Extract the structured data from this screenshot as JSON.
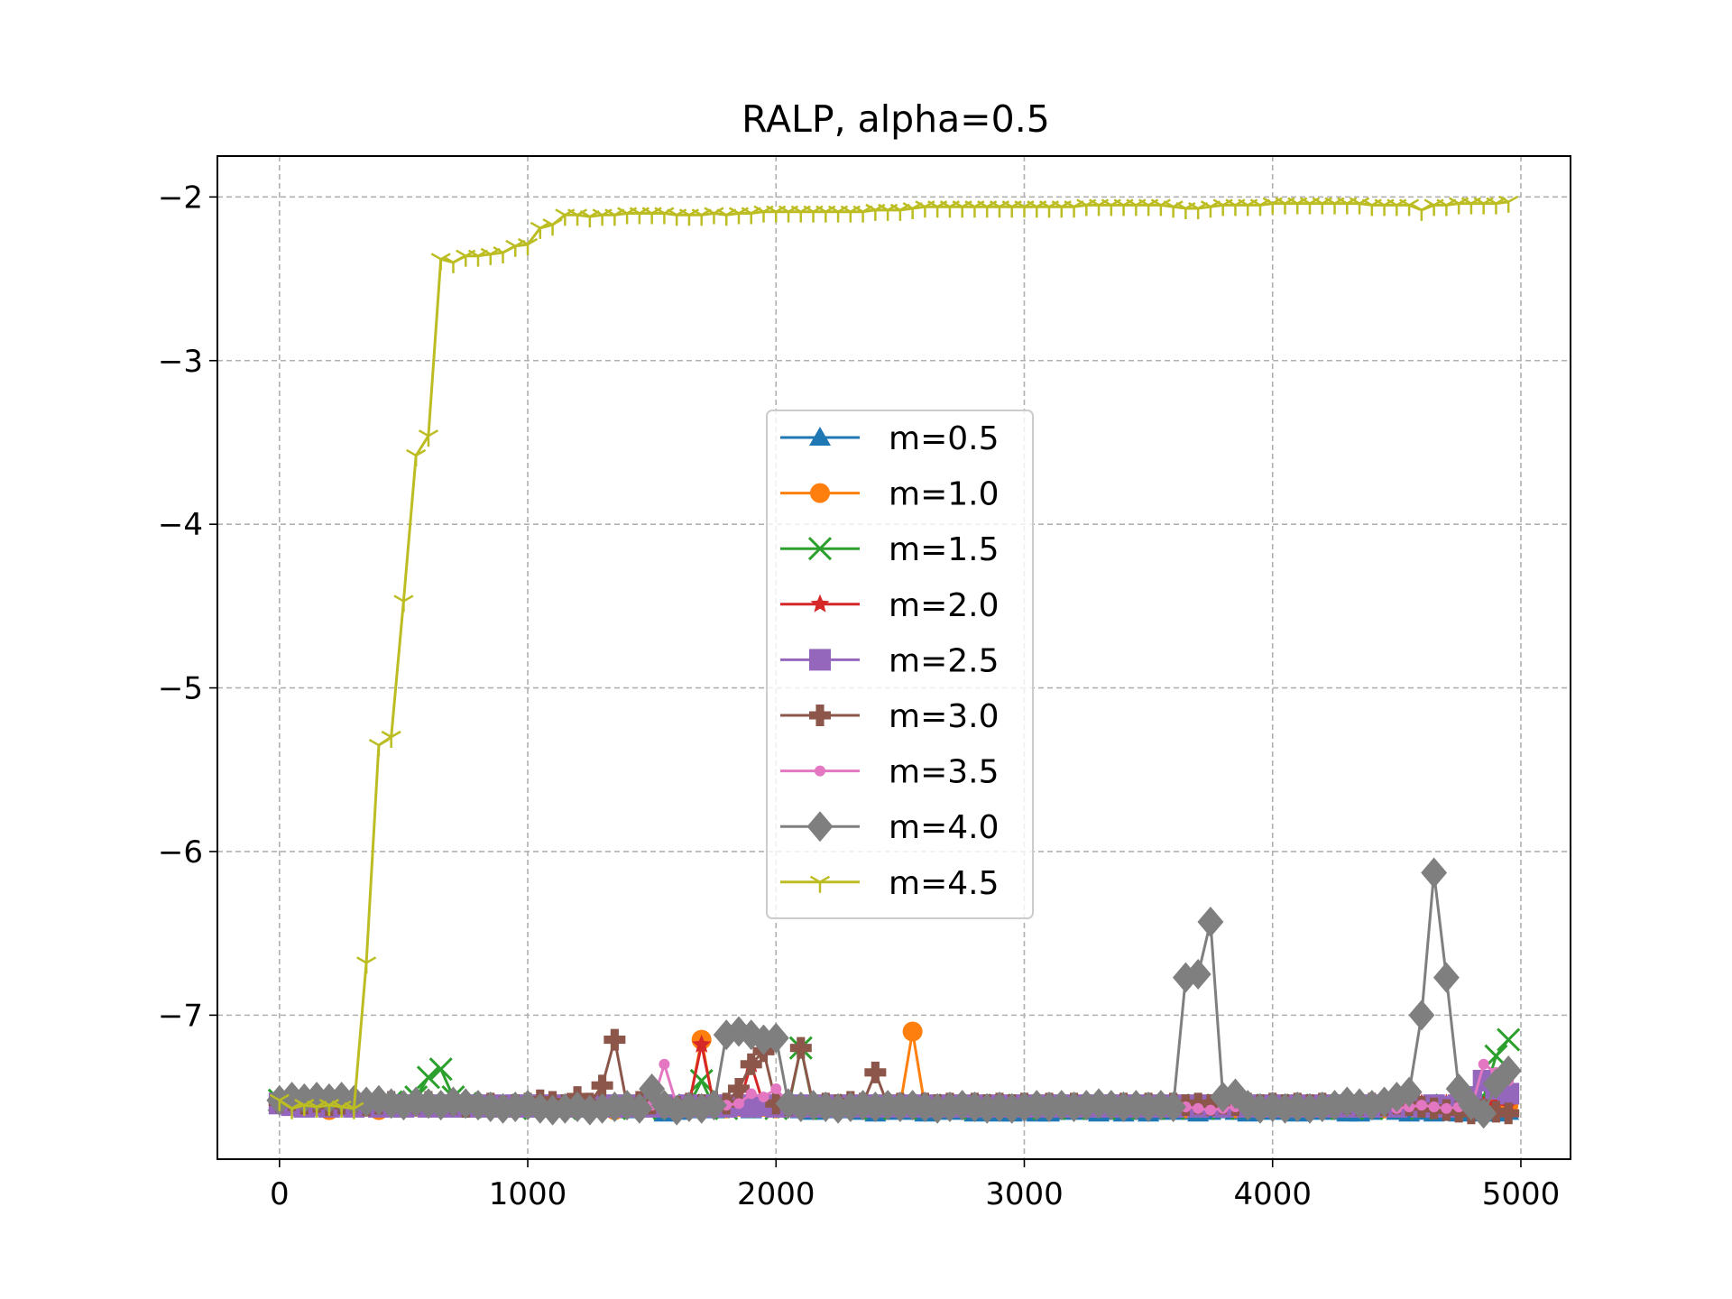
{
  "chart_data": {
    "type": "line",
    "title": "RALP, alpha=0.5",
    "xlabel": "",
    "ylabel": "",
    "xlim": [
      -250,
      5200
    ],
    "ylim": [
      -7.88,
      -1.75
    ],
    "xticks": [
      0,
      1000,
      2000,
      3000,
      4000,
      5000
    ],
    "yticks": [
      -7,
      -6,
      -5,
      -4,
      -3,
      -2
    ],
    "xtick_labels": [
      "0",
      "1000",
      "2000",
      "3000",
      "4000",
      "5000"
    ],
    "ytick_labels": [
      "−7",
      "−6",
      "−5",
      "−4",
      "−3",
      "−2"
    ],
    "grid": true,
    "legend_position": "center",
    "x": [
      0,
      50,
      100,
      150,
      200,
      250,
      300,
      350,
      400,
      450,
      500,
      550,
      600,
      650,
      700,
      750,
      800,
      850,
      900,
      950,
      1000,
      1050,
      1100,
      1150,
      1200,
      1250,
      1300,
      1350,
      1400,
      1450,
      1500,
      1550,
      1600,
      1650,
      1700,
      1750,
      1800,
      1850,
      1900,
      1950,
      2000,
      2050,
      2100,
      2150,
      2200,
      2250,
      2300,
      2350,
      2400,
      2450,
      2500,
      2550,
      2600,
      2650,
      2700,
      2750,
      2800,
      2850,
      2900,
      2950,
      3000,
      3050,
      3100,
      3150,
      3200,
      3250,
      3300,
      3350,
      3400,
      3450,
      3500,
      3550,
      3600,
      3650,
      3700,
      3750,
      3800,
      3850,
      3900,
      3950,
      4000,
      4050,
      4100,
      4150,
      4200,
      4250,
      4300,
      4350,
      4400,
      4450,
      4500,
      4550,
      4600,
      4650,
      4700,
      4750,
      4800,
      4850,
      4900,
      4950
    ],
    "series": [
      {
        "name": "m=0.5",
        "color": "#1f77b4",
        "marker": "triangle",
        "marker_size": 12,
        "values": [
          -7.52,
          -7.53,
          -7.55,
          -7.54,
          -7.56,
          -7.53,
          -7.54,
          -7.55,
          -7.53,
          -7.52,
          -7.55,
          -7.56,
          -7.54,
          -7.53,
          -7.55,
          -7.54,
          -7.56,
          -7.57,
          -7.55,
          -7.54,
          -7.56,
          -7.55,
          -7.57,
          -7.56,
          -7.55,
          -7.54,
          -7.56,
          -7.57,
          -7.58,
          -7.56,
          -7.55,
          -7.6,
          -7.59,
          -7.58,
          -7.57,
          -7.58,
          -7.57,
          -7.56,
          -7.58,
          -7.57,
          -7.56,
          -7.57,
          -7.58,
          -7.59,
          -7.58,
          -7.57,
          -7.58,
          -7.59,
          -7.6,
          -7.59,
          -7.58,
          -7.59,
          -7.6,
          -7.59,
          -7.58,
          -7.59,
          -7.6,
          -7.59,
          -7.6,
          -7.6,
          -7.59,
          -7.6,
          -7.6,
          -7.59,
          -7.58,
          -7.59,
          -7.6,
          -7.59,
          -7.6,
          -7.59,
          -7.6,
          -7.59,
          -7.58,
          -7.59,
          -7.6,
          -7.59,
          -7.58,
          -7.59,
          -7.6,
          -7.59,
          -7.58,
          -7.59,
          -7.6,
          -7.59,
          -7.58,
          -7.59,
          -7.6,
          -7.6,
          -7.59,
          -7.58,
          -7.59,
          -7.6,
          -7.59,
          -7.6,
          -7.59,
          -7.6,
          -7.59,
          -7.6,
          -7.6,
          -7.59
        ]
      },
      {
        "name": "m=1.0",
        "color": "#ff7f0e",
        "marker": "circle",
        "marker_size": 11,
        "values": [
          -7.53,
          -7.54,
          -7.56,
          -7.55,
          -7.58,
          -7.54,
          -7.55,
          -7.56,
          -7.58,
          -7.55,
          -7.54,
          -7.56,
          -7.55,
          -7.54,
          -7.55,
          -7.56,
          -7.55,
          -7.57,
          -7.56,
          -7.55,
          -7.56,
          -7.55,
          -7.57,
          -7.56,
          -7.55,
          -7.56,
          -7.57,
          -7.58,
          -7.56,
          -7.55,
          -7.56,
          -7.57,
          -7.56,
          -7.55,
          -7.15,
          -7.56,
          -7.57,
          -7.56,
          -7.55,
          -7.56,
          -7.57,
          -7.56,
          -7.55,
          -7.56,
          -7.57,
          -7.56,
          -7.55,
          -7.56,
          -7.57,
          -7.56,
          -7.55,
          -7.1,
          -7.56,
          -7.57,
          -7.56,
          -7.55,
          -7.56,
          -7.57,
          -7.56,
          -7.55,
          -7.56,
          -7.57,
          -7.56,
          -7.55,
          -7.56,
          -7.57,
          -7.56,
          -7.55,
          -7.56,
          -7.57,
          -7.56,
          -7.55,
          -7.56,
          -7.57,
          -7.56,
          -7.55,
          -7.56,
          -7.57,
          -7.56,
          -7.55,
          -7.56,
          -7.57,
          -7.56,
          -7.55,
          -7.56,
          -7.57,
          -7.56,
          -7.55,
          -7.56,
          -7.57,
          -7.56,
          -7.55,
          -7.56,
          -7.57,
          -7.56,
          -7.55,
          -7.56,
          -7.57,
          -7.56,
          -7.55
        ]
      },
      {
        "name": "m=1.5",
        "color": "#2ca02c",
        "marker": "x",
        "marker_size": 12,
        "values": [
          -7.52,
          -7.53,
          -7.54,
          -7.55,
          -7.54,
          -7.53,
          -7.54,
          -7.55,
          -7.54,
          -7.53,
          -7.54,
          -7.5,
          -7.38,
          -7.33,
          -7.5,
          -7.54,
          -7.55,
          -7.56,
          -7.55,
          -7.57,
          -7.56,
          -7.55,
          -7.56,
          -7.57,
          -7.56,
          -7.55,
          -7.56,
          -7.57,
          -7.56,
          -7.55,
          -7.56,
          -7.57,
          -7.56,
          -7.55,
          -7.4,
          -7.56,
          -7.57,
          -7.56,
          -7.55,
          -7.56,
          -7.57,
          -7.56,
          -7.2,
          -7.56,
          -7.57,
          -7.56,
          -7.55,
          -7.56,
          -7.57,
          -7.56,
          -7.55,
          -7.56,
          -7.57,
          -7.56,
          -7.55,
          -7.56,
          -7.57,
          -7.56,
          -7.55,
          -7.56,
          -7.57,
          -7.56,
          -7.55,
          -7.56,
          -7.57,
          -7.56,
          -7.55,
          -7.56,
          -7.57,
          -7.56,
          -7.55,
          -7.56,
          -7.57,
          -7.56,
          -7.55,
          -7.56,
          -7.57,
          -7.56,
          -7.55,
          -7.56,
          -7.57,
          -7.56,
          -7.55,
          -7.56,
          -7.57,
          -7.56,
          -7.55,
          -7.56,
          -7.57,
          -7.56,
          -7.55,
          -7.56,
          -7.57,
          -7.56,
          -7.55,
          -7.56,
          -7.57,
          -7.5,
          -7.25,
          -7.15
        ]
      },
      {
        "name": "m=2.0",
        "color": "#d62728",
        "marker": "star",
        "marker_size": 11,
        "values": [
          -7.53,
          -7.54,
          -7.55,
          -7.54,
          -7.55,
          -7.54,
          -7.55,
          -7.54,
          -7.55,
          -7.54,
          -7.55,
          -7.54,
          -7.55,
          -7.54,
          -7.55,
          -7.54,
          -7.55,
          -7.54,
          -7.55,
          -7.54,
          -7.55,
          -7.54,
          -7.55,
          -7.54,
          -7.55,
          -7.54,
          -7.55,
          -7.54,
          -7.55,
          -7.54,
          -7.55,
          -7.54,
          -7.55,
          -7.54,
          -7.18,
          -7.55,
          -7.54,
          -7.55,
          -7.3,
          -7.55,
          -7.54,
          -7.55,
          -7.54,
          -7.55,
          -7.54,
          -7.55,
          -7.54,
          -7.55,
          -7.54,
          -7.55,
          -7.54,
          -7.55,
          -7.54,
          -7.55,
          -7.54,
          -7.55,
          -7.54,
          -7.55,
          -7.54,
          -7.55,
          -7.54,
          -7.55,
          -7.54,
          -7.55,
          -7.54,
          -7.55,
          -7.54,
          -7.55,
          -7.54,
          -7.55,
          -7.54,
          -7.55,
          -7.54,
          -7.55,
          -7.54,
          -7.55,
          -7.54,
          -7.55,
          -7.54,
          -7.55,
          -7.54,
          -7.55,
          -7.54,
          -7.55,
          -7.54,
          -7.55,
          -7.54,
          -7.55,
          -7.54,
          -7.55,
          -7.54,
          -7.55,
          -7.54,
          -7.55,
          -7.54,
          -7.55,
          -7.54,
          -7.55,
          -7.54,
          -7.55
        ]
      },
      {
        "name": "m=2.5",
        "color": "#9467bd",
        "marker": "square",
        "marker_size": 12,
        "values": [
          -7.54,
          -7.55,
          -7.56,
          -7.55,
          -7.56,
          -7.55,
          -7.56,
          -7.55,
          -7.56,
          -7.55,
          -7.56,
          -7.55,
          -7.56,
          -7.55,
          -7.56,
          -7.55,
          -7.56,
          -7.55,
          -7.56,
          -7.55,
          -7.56,
          -7.55,
          -7.56,
          -7.55,
          -7.56,
          -7.55,
          -7.56,
          -7.55,
          -7.56,
          -7.55,
          -7.56,
          -7.55,
          -7.56,
          -7.55,
          -7.56,
          -7.55,
          -7.56,
          -7.55,
          -7.56,
          -7.55,
          -7.56,
          -7.55,
          -7.56,
          -7.55,
          -7.56,
          -7.55,
          -7.56,
          -7.55,
          -7.56,
          -7.55,
          -7.56,
          -7.55,
          -7.56,
          -7.55,
          -7.56,
          -7.55,
          -7.56,
          -7.55,
          -7.56,
          -7.55,
          -7.56,
          -7.55,
          -7.56,
          -7.55,
          -7.56,
          -7.55,
          -7.56,
          -7.55,
          -7.56,
          -7.55,
          -7.56,
          -7.55,
          -7.56,
          -7.55,
          -7.56,
          -7.55,
          -7.56,
          -7.55,
          -7.56,
          -7.55,
          -7.56,
          -7.55,
          -7.56,
          -7.55,
          -7.56,
          -7.55,
          -7.56,
          -7.55,
          -7.56,
          -7.55,
          -7.56,
          -7.55,
          -7.56,
          -7.55,
          -7.56,
          -7.55,
          -7.5,
          -7.4,
          -7.45,
          -7.48
        ]
      },
      {
        "name": "m=3.0",
        "color": "#8c564b",
        "marker": "plus",
        "marker_size": 12,
        "values": [
          -7.53,
          -7.52,
          -7.54,
          -7.53,
          -7.55,
          -7.54,
          -7.53,
          -7.55,
          -7.54,
          -7.53,
          -7.55,
          -7.54,
          -7.53,
          -7.55,
          -7.54,
          -7.56,
          -7.55,
          -7.54,
          -7.56,
          -7.55,
          -7.54,
          -7.52,
          -7.53,
          -7.55,
          -7.5,
          -7.54,
          -7.43,
          -7.15,
          -7.55,
          -7.53,
          -7.54,
          -7.55,
          -7.56,
          -7.54,
          -7.55,
          -7.53,
          -7.54,
          -7.45,
          -7.3,
          -7.22,
          -7.54,
          -7.55,
          -7.2,
          -7.55,
          -7.54,
          -7.55,
          -7.53,
          -7.54,
          -7.35,
          -7.55,
          -7.54,
          -7.55,
          -7.54,
          -7.55,
          -7.54,
          -7.55,
          -7.54,
          -7.55,
          -7.54,
          -7.55,
          -7.54,
          -7.55,
          -7.54,
          -7.55,
          -7.54,
          -7.55,
          -7.54,
          -7.55,
          -7.54,
          -7.55,
          -7.54,
          -7.55,
          -7.54,
          -7.55,
          -7.54,
          -7.55,
          -7.54,
          -7.55,
          -7.54,
          -7.55,
          -7.54,
          -7.55,
          -7.54,
          -7.55,
          -7.54,
          -7.55,
          -7.54,
          -7.55,
          -7.54,
          -7.55,
          -7.54,
          -7.55,
          -7.56,
          -7.57,
          -7.58,
          -7.59,
          -7.6,
          -7.58,
          -7.59,
          -7.6
        ]
      },
      {
        "name": "m=3.5",
        "color": "#e377c2",
        "marker": "small-circle",
        "marker_size": 6,
        "values": [
          -7.53,
          -7.54,
          -7.55,
          -7.54,
          -7.55,
          -7.54,
          -7.55,
          -7.54,
          -7.55,
          -7.54,
          -7.55,
          -7.54,
          -7.55,
          -7.54,
          -7.55,
          -7.54,
          -7.55,
          -7.54,
          -7.55,
          -7.54,
          -7.55,
          -7.54,
          -7.55,
          -7.54,
          -7.55,
          -7.54,
          -7.55,
          -7.54,
          -7.55,
          -7.54,
          -7.55,
          -7.3,
          -7.55,
          -7.54,
          -7.55,
          -7.54,
          -7.55,
          -7.54,
          -7.48,
          -7.5,
          -7.45,
          -7.54,
          -7.55,
          -7.54,
          -7.55,
          -7.54,
          -7.55,
          -7.54,
          -7.55,
          -7.54,
          -7.55,
          -7.54,
          -7.55,
          -7.54,
          -7.55,
          -7.54,
          -7.55,
          -7.54,
          -7.55,
          -7.54,
          -7.55,
          -7.54,
          -7.55,
          -7.54,
          -7.55,
          -7.54,
          -7.55,
          -7.54,
          -7.55,
          -7.54,
          -7.55,
          -7.56,
          -7.57,
          -7.56,
          -7.57,
          -7.58,
          -7.57,
          -7.56,
          -7.57,
          -7.56,
          -7.57,
          -7.56,
          -7.57,
          -7.56,
          -7.57,
          -7.56,
          -7.57,
          -7.56,
          -7.57,
          -7.56,
          -7.57,
          -7.56,
          -7.55,
          -7.56,
          -7.57,
          -7.56,
          -7.57,
          -7.3,
          -7.35,
          -7.4
        ]
      },
      {
        "name": "m=4.0",
        "color": "#7f7f7f",
        "marker": "diamond",
        "marker_size": 17,
        "values": [
          -7.52,
          -7.5,
          -7.51,
          -7.5,
          -7.51,
          -7.5,
          -7.52,
          -7.53,
          -7.52,
          -7.54,
          -7.55,
          -7.53,
          -7.54,
          -7.55,
          -7.53,
          -7.54,
          -7.55,
          -7.56,
          -7.57,
          -7.56,
          -7.55,
          -7.57,
          -7.58,
          -7.57,
          -7.56,
          -7.58,
          -7.57,
          -7.56,
          -7.55,
          -7.57,
          -7.45,
          -7.55,
          -7.58,
          -7.56,
          -7.57,
          -7.55,
          -7.12,
          -7.1,
          -7.12,
          -7.15,
          -7.14,
          -7.54,
          -7.56,
          -7.55,
          -7.56,
          -7.57,
          -7.56,
          -7.55,
          -7.56,
          -7.55,
          -7.56,
          -7.55,
          -7.56,
          -7.57,
          -7.56,
          -7.55,
          -7.56,
          -7.57,
          -7.56,
          -7.57,
          -7.56,
          -7.55,
          -7.56,
          -7.55,
          -7.56,
          -7.55,
          -7.54,
          -7.55,
          -7.56,
          -7.55,
          -7.56,
          -7.55,
          -7.56,
          -6.77,
          -6.75,
          -6.43,
          -7.5,
          -7.48,
          -7.55,
          -7.57,
          -7.56,
          -7.57,
          -7.56,
          -7.57,
          -7.56,
          -7.55,
          -7.53,
          -7.54,
          -7.55,
          -7.53,
          -7.5,
          -7.47,
          -7.0,
          -6.13,
          -6.77,
          -7.45,
          -7.55,
          -7.6,
          -7.42,
          -7.34
        ]
      },
      {
        "name": "m=4.5",
        "color": "#bcbd22",
        "marker": "tri-down",
        "marker_size": 12,
        "values": [
          -7.52,
          -7.57,
          -7.55,
          -7.56,
          -7.55,
          -7.56,
          -7.57,
          -6.68,
          -5.35,
          -5.3,
          -4.47,
          -3.58,
          -3.46,
          -2.38,
          -2.4,
          -2.36,
          -2.36,
          -2.35,
          -2.34,
          -2.3,
          -2.29,
          -2.19,
          -2.17,
          -2.11,
          -2.11,
          -2.12,
          -2.11,
          -2.11,
          -2.1,
          -2.1,
          -2.1,
          -2.1,
          -2.11,
          -2.11,
          -2.11,
          -2.1,
          -2.11,
          -2.1,
          -2.1,
          -2.09,
          -2.09,
          -2.09,
          -2.09,
          -2.09,
          -2.09,
          -2.09,
          -2.09,
          -2.09,
          -2.08,
          -2.08,
          -2.08,
          -2.07,
          -2.06,
          -2.06,
          -2.06,
          -2.06,
          -2.06,
          -2.06,
          -2.06,
          -2.06,
          -2.06,
          -2.06,
          -2.06,
          -2.06,
          -2.06,
          -2.05,
          -2.05,
          -2.05,
          -2.05,
          -2.05,
          -2.05,
          -2.05,
          -2.06,
          -2.07,
          -2.07,
          -2.06,
          -2.05,
          -2.05,
          -2.05,
          -2.05,
          -2.04,
          -2.04,
          -2.04,
          -2.04,
          -2.04,
          -2.04,
          -2.04,
          -2.04,
          -2.05,
          -2.05,
          -2.05,
          -2.05,
          -2.08,
          -2.05,
          -2.05,
          -2.04,
          -2.04,
          -2.04,
          -2.04,
          -2.03
        ]
      }
    ]
  }
}
